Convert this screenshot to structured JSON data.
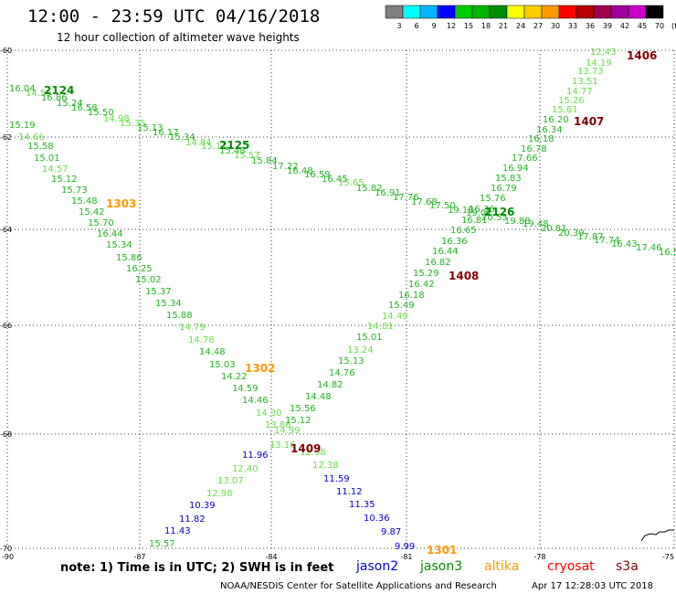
{
  "header": {
    "title": "12:00 - 23:59 UTC 04/16/2018",
    "subtitle": "12 hour collection of altimeter wave heights"
  },
  "colorbar": {
    "colors": [
      "#808080",
      "#00ffff",
      "#00b4ff",
      "#0000ff",
      "#00cd00",
      "#00b400",
      "#008c00",
      "#ffff00",
      "#ffcc00",
      "#ff9900",
      "#ff0000",
      "#b40000",
      "#a00050",
      "#a000a0",
      "#c800c8",
      "#000000"
    ],
    "labels": [
      "3",
      "6",
      "9",
      "12",
      "15",
      "18",
      "21",
      "24",
      "27",
      "30",
      "33",
      "36",
      "39",
      "42",
      "45",
      "70",
      "(ft)"
    ]
  },
  "map": {
    "lat_labels": [
      "-60",
      "-62",
      "-64",
      "-66",
      "-68",
      "-70"
    ],
    "lon_labels": [
      "-90",
      "-87",
      "-84",
      "-81",
      "-78",
      "-75"
    ]
  },
  "swh_colors": {
    "b": "#0000cd",
    "lg": "#66dd44",
    "mg": "#22b422",
    "dg": "#008c00",
    "o": "#ff9900",
    "mr": "#800000"
  },
  "readings": [
    [
      "12.43",
      646,
      56,
      "lg"
    ],
    [
      "14.19",
      641,
      68,
      "lg"
    ],
    [
      "13.73",
      632,
      77,
      "lg"
    ],
    [
      "13.51",
      626,
      88,
      "lg"
    ],
    [
      "14.77",
      620,
      99,
      "lg"
    ],
    [
      "15.26",
      611,
      109,
      "lg"
    ],
    [
      "15.61",
      604,
      119,
      "lg"
    ],
    [
      "16.20",
      594,
      130,
      "mg"
    ],
    [
      "16.34",
      587,
      141,
      "mg"
    ],
    [
      "16.18",
      578,
      151,
      "mg"
    ],
    [
      "16.78",
      570,
      162,
      "mg"
    ],
    [
      "17.66",
      560,
      172,
      "mg"
    ],
    [
      "16.94",
      550,
      183,
      "mg"
    ],
    [
      "15.83",
      542,
      194,
      "mg"
    ],
    [
      "16.79",
      537,
      205,
      "mg"
    ],
    [
      "15.76",
      525,
      216,
      "mg"
    ],
    [
      "16.36",
      513,
      228,
      "mg"
    ],
    [
      "16.81",
      505,
      240,
      "mg"
    ],
    [
      "16.65",
      493,
      251,
      "mg"
    ],
    [
      "16.36",
      483,
      263,
      "mg"
    ],
    [
      "16.44",
      473,
      274,
      "mg"
    ],
    [
      "16.82",
      465,
      286,
      "mg"
    ],
    [
      "15.29",
      452,
      298,
      "mg"
    ],
    [
      "16.42",
      447,
      310,
      "mg"
    ],
    [
      "16.18",
      436,
      322,
      "mg"
    ],
    [
      "15.49",
      425,
      333,
      "mg"
    ],
    [
      "14.49",
      418,
      345,
      "lg"
    ],
    [
      "14.81",
      402,
      356,
      "lg"
    ],
    [
      "15.01",
      390,
      368,
      "mg"
    ],
    [
      "13.24",
      380,
      382,
      "lg"
    ],
    [
      "15.13",
      370,
      394,
      "mg"
    ],
    [
      "14.76",
      360,
      407,
      "mg"
    ],
    [
      "14.82",
      347,
      420,
      "mg"
    ],
    [
      "14.48",
      334,
      433,
      "mg"
    ],
    [
      "15.56",
      317,
      446,
      "mg"
    ],
    [
      "15.12",
      312,
      459,
      "mg"
    ],
    [
      "14.99",
      300,
      470,
      "lg"
    ],
    [
      "13.16",
      295,
      486,
      "lg"
    ],
    [
      "12.58",
      328,
      494,
      "lg"
    ],
    [
      "12.38",
      342,
      508,
      "lg"
    ],
    [
      "11.59",
      354,
      523,
      "b"
    ],
    [
      "11.12",
      368,
      537,
      "b"
    ],
    [
      "11.35",
      382,
      551,
      "b"
    ],
    [
      "10.36",
      398,
      566,
      "b"
    ],
    [
      "9.87",
      417,
      581,
      "b"
    ],
    [
      "9.99",
      432,
      597,
      "b"
    ],
    [
      "15.19",
      10,
      136,
      "mg"
    ],
    [
      "15.58",
      30,
      159,
      "mg"
    ],
    [
      "15.01",
      37,
      172,
      "mg"
    ],
    [
      "14.57",
      46,
      184,
      "lg"
    ],
    [
      "15.12",
      56,
      195,
      "mg"
    ],
    [
      "15.73",
      67,
      207,
      "mg"
    ],
    [
      "15.48",
      78,
      219,
      "mg"
    ],
    [
      "15.42",
      86,
      231,
      "mg"
    ],
    [
      "15.70",
      96,
      243,
      "mg"
    ],
    [
      "16.44",
      106,
      255,
      "mg"
    ],
    [
      "15.34",
      116,
      267,
      "mg"
    ],
    [
      "15.86",
      127,
      281,
      "mg"
    ],
    [
      "16.25",
      138,
      293,
      "mg"
    ],
    [
      "15.02",
      148,
      305,
      "mg"
    ],
    [
      "15.37",
      159,
      318,
      "mg"
    ],
    [
      "15.34",
      170,
      331,
      "mg"
    ],
    [
      "15.88",
      182,
      344,
      "mg"
    ],
    [
      "14.79",
      196,
      357,
      "lg"
    ],
    [
      "14.78",
      206,
      371,
      "lg"
    ],
    [
      "14.48",
      218,
      384,
      "mg"
    ],
    [
      "15.03",
      229,
      398,
      "mg"
    ],
    [
      "14.22",
      242,
      411,
      "mg"
    ],
    [
      "14.59",
      254,
      424,
      "mg"
    ],
    [
      "14.46",
      265,
      437,
      "mg"
    ],
    [
      "14.30",
      280,
      451,
      "lg"
    ],
    [
      "13.86",
      290,
      464,
      "lg"
    ],
    [
      "11.96",
      265,
      497,
      "b"
    ],
    [
      "12.40",
      254,
      512,
      "lg"
    ],
    [
      "13.07",
      238,
      525,
      "lg"
    ],
    [
      "12.98",
      226,
      539,
      "lg"
    ],
    [
      "10.39",
      207,
      552,
      "b"
    ],
    [
      "11.82",
      196,
      567,
      "b"
    ],
    [
      "11.43",
      180,
      580,
      "b"
    ],
    [
      "15.57",
      163,
      594,
      "mg"
    ],
    [
      "16.04",
      10,
      96,
      "mg"
    ],
    [
      "14.55",
      28,
      101,
      "lg"
    ],
    [
      "16.86",
      45,
      106,
      "mg"
    ],
    [
      "15.24",
      62,
      112,
      "mg"
    ],
    [
      "16.58",
      78,
      117,
      "mg"
    ],
    [
      "15.50",
      96,
      122,
      "mg"
    ],
    [
      "14.98",
      113,
      129,
      "lg"
    ],
    [
      "15.35",
      131,
      134,
      "lg"
    ],
    [
      "15.13",
      150,
      139,
      "mg"
    ],
    [
      "16.17",
      167,
      144,
      "mg"
    ],
    [
      "15.34",
      185,
      149,
      "mg"
    ],
    [
      "14.84",
      203,
      155,
      "lg"
    ],
    [
      "15.17",
      220,
      159,
      "lg"
    ],
    [
      "15.48",
      240,
      164,
      "mg"
    ],
    [
      "15.57",
      256,
      169,
      "lg"
    ],
    [
      "15.84",
      275,
      175,
      "mg"
    ],
    [
      "17.22",
      298,
      181,
      "mg"
    ],
    [
      "16.48",
      314,
      186,
      "mg"
    ],
    [
      "16.59",
      333,
      190,
      "mg"
    ],
    [
      "16.45",
      352,
      195,
      "mg"
    ],
    [
      "15.65",
      370,
      199,
      "lg"
    ],
    [
      "15.82",
      390,
      205,
      "mg"
    ],
    [
      "16.91",
      410,
      210,
      "mg"
    ],
    [
      "17.76",
      430,
      215,
      "mg"
    ],
    [
      "17.68",
      450,
      220,
      "mg"
    ],
    [
      "17.50",
      470,
      224,
      "mg"
    ],
    [
      "19.18",
      490,
      229,
      "mg"
    ],
    [
      "19.02",
      510,
      232,
      "mg"
    ],
    [
      "20.53",
      527,
      237,
      "mg"
    ],
    [
      "19.88",
      552,
      241,
      "mg"
    ],
    [
      "19.48",
      572,
      244,
      "mg"
    ],
    [
      "20.81",
      592,
      249,
      "mg"
    ],
    [
      "20.39",
      611,
      254,
      "mg"
    ],
    [
      "17.87",
      632,
      258,
      "mg"
    ],
    [
      "17.74",
      650,
      262,
      "mg"
    ],
    [
      "16.43",
      669,
      266,
      "mg"
    ],
    [
      "17.46",
      696,
      270,
      "mg"
    ],
    [
      "16.5",
      721,
      275,
      "mg"
    ],
    [
      "14.66",
      20,
      149,
      "lg"
    ]
  ],
  "pass_ids": [
    [
      "1406",
      686,
      61,
      "mr"
    ],
    [
      "1407",
      628,
      133,
      "mr"
    ],
    [
      "1408",
      491,
      302,
      "mr"
    ],
    [
      "1409",
      318,
      491,
      "mr"
    ],
    [
      "2124",
      48,
      99,
      "dg"
    ],
    [
      "2125",
      240,
      159,
      "dg"
    ],
    [
      "2126",
      530,
      232,
      "dg"
    ],
    [
      "1303",
      116,
      223,
      "o"
    ],
    [
      "1302",
      268,
      403,
      "o"
    ],
    [
      "1301",
      467,
      602,
      "o"
    ]
  ],
  "footer": {
    "note": "note: 1) Time is in UTC; 2) SWH is in feet",
    "satellites": [
      {
        "name": "jason2",
        "color": "#0000cd"
      },
      {
        "name": "jason3",
        "color": "#008c00"
      },
      {
        "name": "altika",
        "color": "#ff9900"
      },
      {
        "name": "cryosat",
        "color": "#ff0000"
      },
      {
        "name": "s3a",
        "color": "#800000"
      }
    ],
    "credit_left": "NOAA/NESDIS Center for Satellite Applications and Research",
    "credit_right": "Apr 17 12:28:03 UTC 2018"
  }
}
